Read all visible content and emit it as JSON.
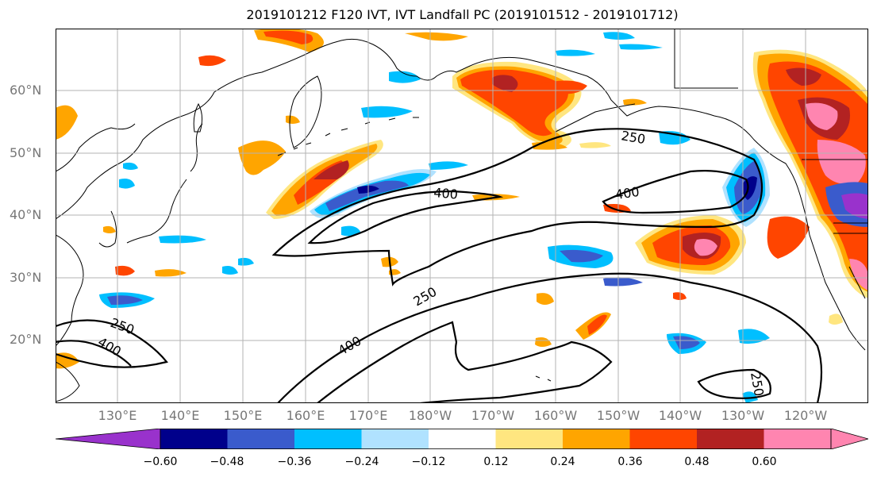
{
  "title": "2019101212 F120 IVT, IVT Landfall PC (2019101512 - 2019101712)",
  "lat_labels": [
    "60°N",
    "50°N",
    "40°N",
    "30°N",
    "20°N"
  ],
  "lon_labels": [
    "130°E",
    "140°E",
    "150°E",
    "160°E",
    "170°E",
    "180°W",
    "170°W",
    "160°W",
    "150°W",
    "140°W",
    "130°W",
    "120°W"
  ],
  "contour_labels": [
    "250",
    "400",
    "400",
    "250",
    "400",
    "250",
    "400",
    "250"
  ],
  "colorbar": {
    "colors": [
      "#9932CC",
      "#00008B",
      "#3A5BCC",
      "#00BFFF",
      "#B0E2FF",
      "#FFFFFF",
      "#FFE680",
      "#FFA500",
      "#FF4500",
      "#B22222",
      "#FF85B0",
      "#FF85B0"
    ],
    "ticks": [
      "−0.60",
      "−0.48",
      "−0.36",
      "−0.24",
      "−0.12",
      "0.12",
      "0.24",
      "0.36",
      "0.48",
      "0.60"
    ]
  },
  "colors": {
    "negative_strong": "#9932CC",
    "negative_dark": "#00008B",
    "negative_mid": "#3A5BCC",
    "negative_light": "#00BFFF",
    "negative_pale": "#B0E2FF",
    "positive_pale": "#FFE680",
    "positive_light": "#FFA500",
    "positive_mid": "#FF4500",
    "positive_dark": "#B22222",
    "positive_strong": "#FF85B0"
  }
}
